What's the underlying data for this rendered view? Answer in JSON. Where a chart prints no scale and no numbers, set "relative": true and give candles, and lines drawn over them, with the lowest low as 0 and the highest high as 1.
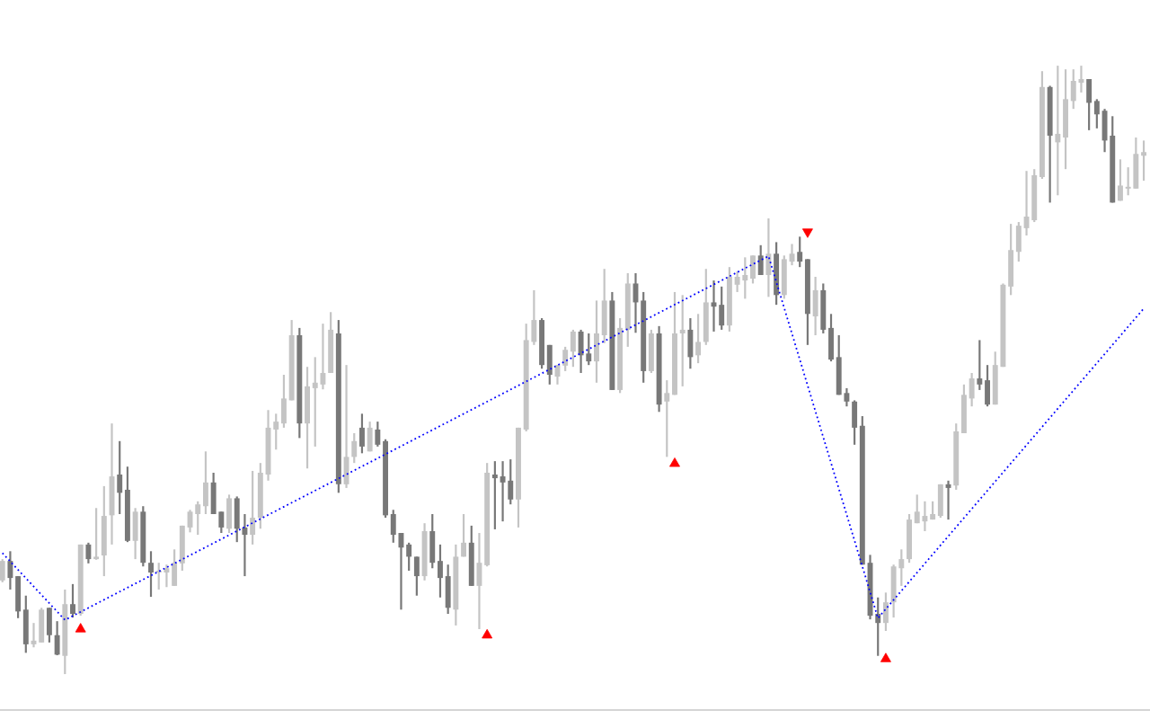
{
  "chart_data": {
    "type": "candlestick",
    "relative": true,
    "categories": [
      null,
      null,
      null,
      null,
      null,
      null,
      null,
      null,
      null,
      null,
      null,
      null,
      null,
      null,
      null,
      null,
      null,
      null,
      null,
      null,
      null,
      null,
      null,
      null,
      null,
      null,
      null,
      null,
      null,
      null,
      null,
      null,
      null,
      null,
      null,
      null,
      null,
      null,
      null,
      null,
      null,
      null,
      null,
      null,
      null,
      null,
      null,
      null,
      null,
      null,
      null,
      null,
      null,
      null,
      null,
      null,
      null,
      null,
      null,
      null,
      null,
      null,
      null,
      null,
      null,
      null,
      null,
      null,
      null,
      null,
      null,
      null,
      null,
      null,
      null,
      null,
      null,
      null,
      null,
      null,
      null,
      null,
      null,
      null,
      null,
      null,
      null,
      null,
      null,
      null,
      null,
      null,
      null,
      null,
      null,
      null,
      null,
      null,
      null,
      null,
      null,
      null,
      null,
      null,
      null,
      null,
      null,
      null,
      null,
      null,
      null,
      null,
      null,
      null,
      null,
      null,
      null,
      null,
      null,
      null,
      null,
      null,
      null,
      null,
      null,
      null,
      null,
      null,
      null,
      null,
      null,
      null,
      null,
      null,
      null,
      null,
      null,
      null,
      null,
      null,
      null,
      null,
      null,
      null,
      null,
      null,
      null
    ],
    "ohlc": [
      [
        0.154,
        0.189,
        0.151,
        0.186
      ],
      [
        0.186,
        0.202,
        0.139,
        0.158
      ],
      [
        0.161,
        0.161,
        0.092,
        0.103
      ],
      [
        0.106,
        0.129,
        0.035,
        0.049
      ],
      [
        0.049,
        0.084,
        0.044,
        0.055
      ],
      [
        0.052,
        0.109,
        0.052,
        0.106
      ],
      [
        0.109,
        0.109,
        0.052,
        0.064
      ],
      [
        0.064,
        0.087,
        0.031,
        0.032
      ],
      [
        0.03,
        0.139,
        0,
        0.115
      ],
      [
        0.115,
        0.148,
        0.093,
        0.099
      ],
      [
        0.099,
        0.213,
        0.096,
        0.213
      ],
      [
        0.213,
        0.216,
        0.182,
        0.189
      ],
      [
        0.189,
        0.273,
        0.188,
        0.193
      ],
      [
        0.195,
        0.309,
        0.161,
        0.26
      ],
      [
        0.261,
        0.412,
        0.213,
        0.325
      ],
      [
        0.328,
        0.383,
        0.263,
        0.298
      ],
      [
        0.303,
        0.341,
        0.217,
        0.219
      ],
      [
        0.219,
        0.273,
        0.189,
        0.267
      ],
      [
        0.267,
        0.276,
        0.177,
        0.183
      ],
      [
        0.183,
        0.202,
        0.127,
        0.167
      ],
      [
        0.167,
        0.183,
        0.139,
        0.17
      ],
      [
        0.167,
        0.18,
        0.143,
        0.174
      ],
      [
        0.145,
        0.205,
        0.145,
        0.183
      ],
      [
        0.182,
        0.244,
        0.17,
        0.244
      ],
      [
        0.241,
        0.27,
        0.233,
        0.267
      ],
      [
        0.263,
        0.284,
        0.229,
        0.279
      ],
      [
        0.276,
        0.366,
        0.263,
        0.315
      ],
      [
        0.315,
        0.331,
        0.263,
        0.263
      ],
      [
        0.267,
        0.267,
        0.232,
        0.241
      ],
      [
        0.239,
        0.295,
        0.232,
        0.289
      ],
      [
        0.289,
        0.292,
        0.217,
        0.239
      ],
      [
        0.241,
        0.263,
        0.161,
        0.229
      ],
      [
        0.229,
        0.334,
        0.213,
        0.257
      ],
      [
        0.257,
        0.347,
        0.239,
        0.331
      ],
      [
        0.328,
        0.434,
        0.318,
        0.405
      ],
      [
        0.402,
        0.428,
        0.369,
        0.415
      ],
      [
        0.412,
        0.492,
        0.405,
        0.453
      ],
      [
        0.45,
        0.582,
        0.45,
        0.557
      ],
      [
        0.557,
        0.569,
        0.388,
        0.412
      ],
      [
        0.412,
        0.505,
        0.338,
        0.473
      ],
      [
        0.47,
        0.521,
        0.374,
        0.479
      ],
      [
        0.476,
        0.576,
        0.468,
        0.495
      ],
      [
        0.495,
        0.595,
        0.495,
        0.566
      ],
      [
        0.56,
        0.582,
        0.298,
        0.312
      ],
      [
        0.312,
        0.508,
        0.306,
        0.357
      ],
      [
        0.357,
        0.396,
        0.347,
        0.383
      ],
      [
        0.405,
        0.428,
        0.363,
        0.374
      ],
      [
        0.366,
        0.415,
        0.366,
        0.405
      ],
      [
        0.402,
        0.415,
        0.374,
        0.377
      ],
      [
        0.383,
        0.386,
        0.257,
        0.261
      ],
      [
        0.263,
        0.27,
        0.216,
        0.229
      ],
      [
        0.232,
        0.232,
        0.106,
        0.208
      ],
      [
        0.213,
        0.216,
        0.17,
        0.193
      ],
      [
        0.193,
        0.193,
        0.129,
        0.161
      ],
      [
        0.161,
        0.248,
        0.154,
        0.235
      ],
      [
        0.235,
        0.263,
        0.174,
        0.183
      ],
      [
        0.186,
        0.213,
        0.126,
        0.158
      ],
      [
        0.161,
        0.18,
        0.099,
        0.109
      ],
      [
        0.106,
        0.213,
        0.08,
        0.193
      ],
      [
        0.193,
        0.263,
        0.193,
        0.216
      ],
      [
        0.216,
        0.244,
        0.145,
        0.145
      ],
      [
        0.145,
        0.232,
        0.074,
        0.183
      ],
      [
        0.179,
        0.347,
        0.177,
        0.331
      ],
      [
        0.328,
        0.35,
        0.238,
        0.322
      ],
      [
        0.325,
        0.35,
        0.251,
        0.315
      ],
      [
        0.318,
        0.353,
        0.279,
        0.287
      ],
      [
        0.287,
        0.405,
        0.241,
        0.405
      ],
      [
        0.402,
        0.576,
        0.399,
        0.549
      ],
      [
        0.546,
        0.631,
        0.541,
        0.582
      ],
      [
        0.582,
        0.585,
        0.502,
        0.508
      ],
      [
        0.541,
        0.541,
        0.476,
        0.492
      ],
      [
        0.489,
        0.508,
        0.476,
        0.508
      ],
      [
        0.507,
        0.538,
        0.498,
        0.533
      ],
      [
        0.53,
        0.566,
        0.505,
        0.563
      ],
      [
        0.563,
        0.566,
        0.495,
        0.524
      ],
      [
        0.527,
        0.56,
        0.508,
        0.514
      ],
      [
        0.514,
        0.614,
        0.479,
        0.56
      ],
      [
        0.557,
        0.666,
        0.544,
        0.614
      ],
      [
        0.614,
        0.628,
        0.467,
        0.467
      ],
      [
        0.467,
        0.585,
        0.462,
        0.569
      ],
      [
        0.566,
        0.659,
        0.538,
        0.642
      ],
      [
        0.642,
        0.659,
        0.561,
        0.611
      ],
      [
        0.614,
        0.628,
        0.479,
        0.498
      ],
      [
        0.498,
        0.566,
        0.495,
        0.56
      ],
      [
        0.56,
        0.572,
        0.431,
        0.443
      ],
      [
        0.448,
        0.483,
        0.357,
        0.462
      ],
      [
        0.459,
        0.628,
        0.459,
        0.56
      ],
      [
        0.56,
        0.623,
        0.473,
        0.566
      ],
      [
        0.566,
        0.585,
        0.502,
        0.521
      ],
      [
        0.524,
        0.592,
        0.511,
        0.546
      ],
      [
        0.546,
        0.666,
        0.541,
        0.611
      ],
      [
        0.611,
        0.647,
        0.563,
        0.604
      ],
      [
        0.607,
        0.637,
        0.566,
        0.573
      ],
      [
        0.573,
        0.669,
        0.563,
        0.653
      ],
      [
        0.64,
        0.662,
        0.628,
        0.653
      ],
      [
        0.647,
        0.685,
        0.617,
        0.656
      ],
      [
        0.65,
        0.688,
        0.642,
        0.688
      ],
      [
        0.688,
        0.705,
        0.656,
        0.656
      ],
      [
        0.656,
        0.749,
        0.62,
        0.691
      ],
      [
        0.691,
        0.71,
        0.607,
        0.623
      ],
      [
        0.623,
        0.688,
        0.617,
        0.682
      ],
      [
        0.678,
        0.707,
        0.672,
        0.691
      ],
      [
        0.694,
        0.719,
        0.669,
        0.678
      ],
      [
        0.682,
        0.682,
        0.541,
        0.592
      ],
      [
        0.588,
        0.653,
        0.557,
        0.631
      ],
      [
        0.631,
        0.642,
        0.56,
        0.566
      ],
      [
        0.569,
        0.592,
        0.514,
        0.517
      ],
      [
        0.521,
        0.557,
        0.459,
        0.459
      ],
      [
        0.462,
        0.47,
        0.44,
        0.448
      ],
      [
        0.448,
        0.45,
        0.377,
        0.405
      ],
      [
        0.408,
        0.424,
        0.18,
        0.18
      ],
      [
        0.183,
        0.196,
        0.09,
        0.096
      ],
      [
        0.099,
        0.126,
        0.03,
        0.084
      ],
      [
        0.084,
        0.134,
        0.071,
        0.118
      ],
      [
        0.118,
        0.18,
        0.093,
        0.177
      ],
      [
        0.174,
        0.205,
        0.145,
        0.189
      ],
      [
        0.189,
        0.263,
        0.183,
        0.254
      ],
      [
        0.248,
        0.295,
        0.248,
        0.267
      ],
      [
        0.251,
        0.284,
        0.235,
        0.26
      ],
      [
        0.254,
        0.284,
        0.254,
        0.263
      ],
      [
        0.26,
        0.312,
        0.257,
        0.312
      ],
      [
        0.312,
        0.318,
        0.254,
        0.306
      ],
      [
        0.31,
        0.412,
        0.303,
        0.399
      ],
      [
        0.396,
        0.476,
        0.396,
        0.459
      ],
      [
        0.453,
        0.495,
        0.44,
        0.486
      ],
      [
        0.486,
        0.549,
        0.467,
        0.476
      ],
      [
        0.483,
        0.508,
        0.44,
        0.443
      ],
      [
        0.443,
        0.53,
        0.443,
        0.508
      ],
      [
        0.505,
        0.642,
        0.505,
        0.64
      ],
      [
        0.637,
        0.74,
        0.623,
        0.697
      ],
      [
        0.694,
        0.743,
        0.678,
        0.737
      ],
      [
        0.733,
        0.827,
        0.721,
        0.752
      ],
      [
        0.746,
        0.83,
        0.743,
        0.82
      ],
      [
        0.817,
        0.991,
        0.814,
        0.965
      ],
      [
        0.965,
        0.967,
        0.775,
        0.885
      ],
      [
        0.874,
        1,
        0.787,
        0.888
      ],
      [
        0.882,
        0.994,
        0.83,
        0.945
      ],
      [
        0.942,
        0.994,
        0.929,
        0.975
      ],
      [
        0.972,
        1,
        0.956,
        0.978
      ],
      [
        0.978,
        0.978,
        0.894,
        0.939
      ],
      [
        0.942,
        0.945,
        0.897,
        0.92
      ],
      [
        0.926,
        0.929,
        0.858,
        0.877
      ],
      [
        0.885,
        0.917,
        0.775,
        0.775
      ],
      [
        0.778,
        0.846,
        0.778,
        0.803
      ],
      [
        0.798,
        0.833,
        0.787,
        0.801
      ],
      [
        0.798,
        0.882,
        0.798,
        0.855
      ],
      [
        0.852,
        0.877,
        0.811,
        0.858
      ]
    ],
    "colors": [
      "#c4c4c4",
      "#787878",
      "#787878",
      "#787878",
      "#c4c4c4",
      "#c4c4c4",
      "#787878",
      "#787878",
      "#c4c4c4",
      "#787878",
      "#c4c4c4",
      "#787878",
      "#c4c4c4",
      "#c4c4c4",
      "#c4c4c4",
      "#787878",
      "#787878",
      "#c4c4c4",
      "#787878",
      "#787878",
      "#c4c4c4",
      "#c4c4c4",
      "#c4c4c4",
      "#c4c4c4",
      "#c4c4c4",
      "#c4c4c4",
      "#c4c4c4",
      "#787878",
      "#787878",
      "#c4c4c4",
      "#787878",
      "#787878",
      "#c4c4c4",
      "#c4c4c4",
      "#c4c4c4",
      "#c4c4c4",
      "#c4c4c4",
      "#c4c4c4",
      "#787878",
      "#c4c4c4",
      "#c4c4c4",
      "#c4c4c4",
      "#c4c4c4",
      "#787878",
      "#c4c4c4",
      "#c4c4c4",
      "#787878",
      "#c4c4c4",
      "#787878",
      "#787878",
      "#787878",
      "#787878",
      "#787878",
      "#787878",
      "#c4c4c4",
      "#787878",
      "#787878",
      "#787878",
      "#c4c4c4",
      "#c4c4c4",
      "#787878",
      "#c4c4c4",
      "#c4c4c4",
      "#787878",
      "#787878",
      "#787878",
      "#c4c4c4",
      "#c4c4c4",
      "#c4c4c4",
      "#787878",
      "#787878",
      "#c4c4c4",
      "#c4c4c4",
      "#c4c4c4",
      "#787878",
      "#787878",
      "#c4c4c4",
      "#c4c4c4",
      "#787878",
      "#c4c4c4",
      "#c4c4c4",
      "#787878",
      "#787878",
      "#c4c4c4",
      "#787878",
      "#c4c4c4",
      "#c4c4c4",
      "#c4c4c4",
      "#787878",
      "#c4c4c4",
      "#c4c4c4",
      "#787878",
      "#787878",
      "#c4c4c4",
      "#c4c4c4",
      "#c4c4c4",
      "#c4c4c4",
      "#787878",
      "#c4c4c4",
      "#787878",
      "#c4c4c4",
      "#c4c4c4",
      "#787878",
      "#787878",
      "#c4c4c4",
      "#787878",
      "#787878",
      "#787878",
      "#787878",
      "#787878",
      "#787878",
      "#787878",
      "#787878",
      "#c4c4c4",
      "#c4c4c4",
      "#c4c4c4",
      "#c4c4c4",
      "#c4c4c4",
      "#c4c4c4",
      "#c4c4c4",
      "#c4c4c4",
      "#787878",
      "#c4c4c4",
      "#c4c4c4",
      "#c4c4c4",
      "#787878",
      "#787878",
      "#c4c4c4",
      "#c4c4c4",
      "#c4c4c4",
      "#c4c4c4",
      "#c4c4c4",
      "#c4c4c4",
      "#c4c4c4",
      "#787878",
      "#c4c4c4",
      "#c4c4c4",
      "#c4c4c4",
      "#c4c4c4",
      "#787878",
      "#787878",
      "#787878",
      "#787878",
      "#c4c4c4",
      "#c4c4c4",
      "#c4c4c4",
      "#c4c4c4"
    ],
    "series": [
      {
        "type": "line",
        "color": "#0000ff",
        "line_style": "dotted",
        "marker": "none",
        "values": [
          0.199,
          null,
          null,
          null,
          null,
          null,
          null,
          null,
          0.089,
          null,
          null,
          null,
          null,
          null,
          null,
          null,
          null,
          null,
          null,
          null,
          null,
          null,
          null,
          null,
          null,
          null,
          null,
          null,
          null,
          null,
          null,
          null,
          null,
          null,
          null,
          null,
          null,
          null,
          null,
          null,
          null,
          null,
          null,
          null,
          null,
          null,
          null,
          null,
          null,
          null,
          null,
          null,
          null,
          null,
          null,
          null,
          null,
          null,
          null,
          null,
          null,
          null,
          null,
          null,
          null,
          null,
          null,
          null,
          null,
          null,
          null,
          null,
          null,
          null,
          null,
          null,
          null,
          null,
          null,
          null,
          null,
          null,
          null,
          null,
          null,
          null,
          null,
          null,
          null,
          null,
          null,
          null,
          null,
          null,
          null,
          null,
          null,
          null,
          0.687,
          null,
          null,
          null,
          null,
          null,
          null,
          null,
          null,
          null,
          null,
          null,
          null,
          null,
          0.092,
          null,
          null,
          null,
          null,
          null,
          null,
          null,
          null,
          null,
          null,
          null,
          null,
          null,
          null,
          null,
          null,
          null,
          null,
          null,
          null,
          null,
          null,
          null,
          null,
          null,
          null,
          null,
          null,
          null,
          null,
          null,
          null,
          null,
          0.601
        ]
      },
      {
        "type": "scatter",
        "color": "#ff0000",
        "marker": "triangle",
        "values": [
          null,
          null,
          null,
          null,
          null,
          null,
          null,
          null,
          null,
          null,
          0.074,
          null,
          null,
          null,
          null,
          null,
          null,
          null,
          null,
          null,
          null,
          null,
          null,
          null,
          null,
          null,
          null,
          null,
          null,
          null,
          null,
          null,
          null,
          null,
          null,
          null,
          null,
          null,
          null,
          null,
          null,
          null,
          null,
          null,
          null,
          null,
          null,
          null,
          null,
          null,
          null,
          null,
          null,
          null,
          null,
          null,
          null,
          null,
          null,
          null,
          null,
          null,
          0.064,
          null,
          null,
          null,
          null,
          null,
          null,
          null,
          null,
          null,
          null,
          null,
          null,
          null,
          null,
          null,
          null,
          null,
          null,
          null,
          null,
          null,
          null,
          null,
          0.346,
          null,
          null,
          null,
          null,
          null,
          null,
          null,
          null,
          null,
          null,
          null,
          null,
          null,
          null,
          null,
          null,
          null,
          null,
          null,
          null,
          null,
          null,
          null,
          null,
          null,
          null,
          0.025,
          null,
          null,
          null,
          null,
          null,
          null,
          null,
          null,
          null,
          null,
          null,
          null,
          null,
          null,
          null,
          null,
          null,
          null,
          null,
          null,
          null,
          null,
          null,
          null,
          null,
          null,
          null,
          null,
          null,
          null,
          null,
          null,
          null
        ]
      },
      {
        "type": "scatter",
        "color": "#ff0000",
        "marker": "triangle",
        "values": [
          null,
          null,
          null,
          null,
          null,
          null,
          null,
          null,
          null,
          null,
          null,
          null,
          null,
          null,
          null,
          null,
          null,
          null,
          null,
          null,
          null,
          null,
          null,
          null,
          null,
          null,
          null,
          null,
          null,
          null,
          null,
          null,
          null,
          null,
          null,
          null,
          null,
          null,
          null,
          null,
          null,
          null,
          null,
          null,
          null,
          null,
          null,
          null,
          null,
          null,
          null,
          null,
          null,
          null,
          null,
          null,
          null,
          null,
          null,
          null,
          null,
          null,
          null,
          null,
          null,
          null,
          null,
          null,
          null,
          null,
          null,
          null,
          null,
          null,
          null,
          null,
          null,
          null,
          null,
          null,
          null,
          null,
          null,
          null,
          null,
          null,
          null,
          null,
          null,
          null,
          null,
          null,
          null,
          null,
          null,
          null,
          null,
          null,
          null,
          null,
          null,
          null,
          null,
          0.727,
          null,
          null,
          null,
          null,
          null,
          null,
          null,
          null,
          null,
          null,
          null,
          null,
          null,
          null,
          null,
          null,
          null,
          null,
          null,
          null,
          null,
          null,
          null,
          null,
          null,
          null,
          null,
          null,
          null,
          null,
          null,
          null,
          null,
          null,
          null,
          null,
          null,
          null,
          null,
          null,
          null,
          null,
          null
        ]
      }
    ]
  }
}
